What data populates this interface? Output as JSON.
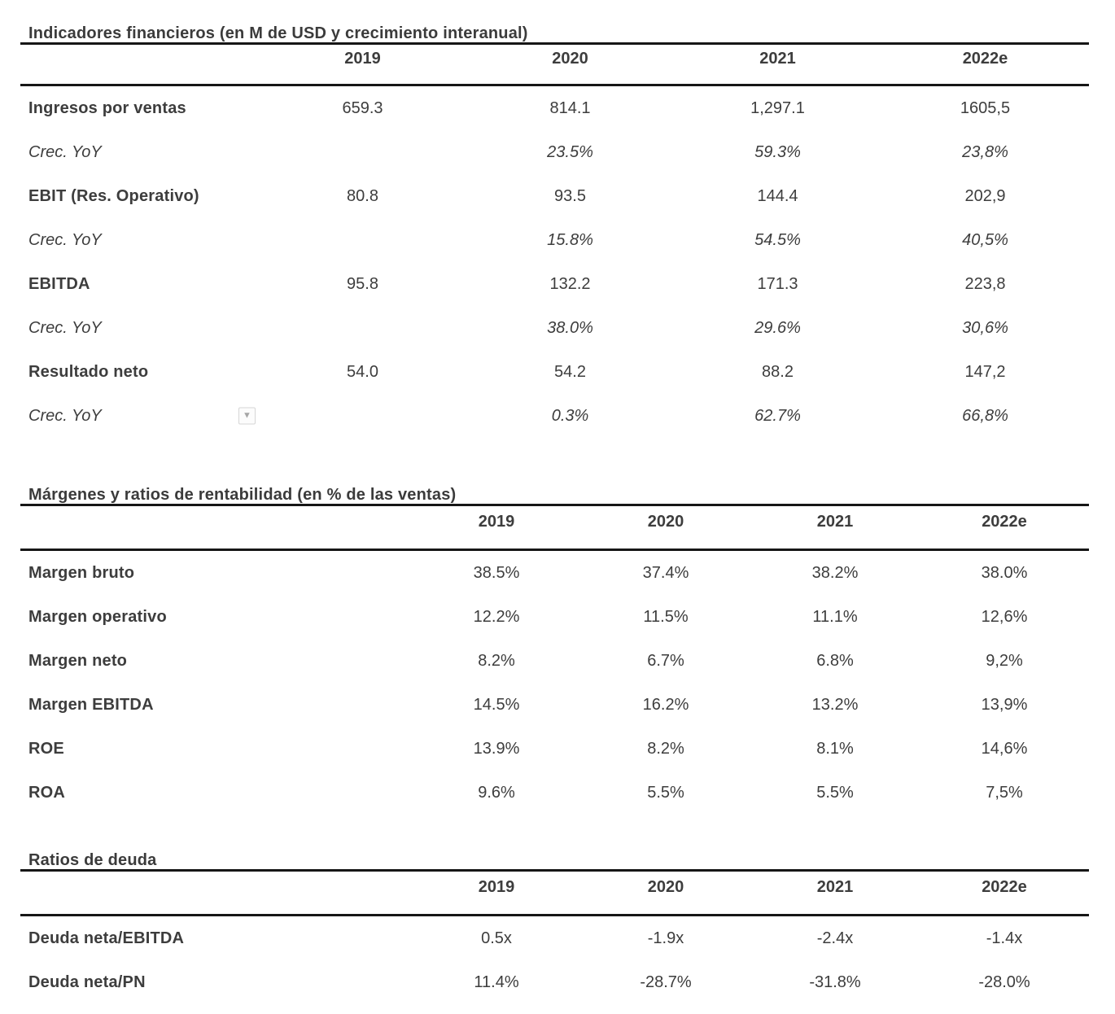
{
  "page": {
    "background_color": "#ffffff",
    "text_color": "#3d3d3d",
    "rule_color": "#161616"
  },
  "icons": {
    "caret_down": "▼"
  },
  "tables": [
    {
      "id": "indicadores",
      "title": "Indicadores financieros (en M de USD y crecimiento interanual)",
      "columns": [
        "2019",
        "2020",
        "2021",
        "2022e"
      ],
      "rows": [
        {
          "label": "Ingresos por ventas",
          "style": "metric",
          "values": [
            "659.3",
            "814.1",
            "1,297.1",
            "1605,5"
          ]
        },
        {
          "label": "Crec. YoY",
          "style": "growth",
          "values": [
            "",
            "23.5%",
            "59.3%",
            "23,8%"
          ]
        },
        {
          "label": "EBIT (Res. Operativo)",
          "style": "metric",
          "values": [
            "80.8",
            "93.5",
            "144.4",
            "202,9"
          ]
        },
        {
          "label": "Crec. YoY",
          "style": "growth",
          "values": [
            "",
            "15.8%",
            "54.5%",
            "40,5%"
          ]
        },
        {
          "label": "EBITDA",
          "style": "metric",
          "values": [
            "95.8",
            "132.2",
            "171.3",
            "223,8"
          ]
        },
        {
          "label": "Crec. YoY",
          "style": "growth",
          "values": [
            "",
            "38.0%",
            "29.6%",
            "30,6%"
          ]
        },
        {
          "label": "Resultado neto",
          "style": "metric",
          "values": [
            "54.0",
            "54.2",
            "88.2",
            "147,2"
          ]
        },
        {
          "label": "Crec. YoY",
          "style": "growth",
          "has_dropdown": true,
          "values": [
            "",
            "0.3%",
            "62.7%",
            "66,8%"
          ]
        }
      ]
    },
    {
      "id": "margenes",
      "title": "Márgenes y ratios de rentabilidad (en % de las ventas)",
      "columns": [
        "2019",
        "2020",
        "2021",
        "2022e"
      ],
      "rows": [
        {
          "label": "Margen bruto",
          "style": "metric",
          "values": [
            "38.5%",
            "37.4%",
            "38.2%",
            "38.0%"
          ]
        },
        {
          "label": "Margen operativo",
          "style": "metric",
          "values": [
            "12.2%",
            "11.5%",
            "11.1%",
            "12,6%"
          ]
        },
        {
          "label": "Margen neto",
          "style": "metric",
          "values": [
            "8.2%",
            "6.7%",
            "6.8%",
            "9,2%"
          ]
        },
        {
          "label": "Margen EBITDA",
          "style": "metric",
          "values": [
            "14.5%",
            "16.2%",
            "13.2%",
            "13,9%"
          ]
        },
        {
          "label": "ROE",
          "style": "metric",
          "values": [
            "13.9%",
            "8.2%",
            "8.1%",
            "14,6%"
          ]
        },
        {
          "label": "ROA",
          "style": "metric",
          "values": [
            "9.6%",
            "5.5%",
            "5.5%",
            "7,5%"
          ]
        }
      ]
    },
    {
      "id": "deuda",
      "title": "Ratios de deuda",
      "columns": [
        "2019",
        "2020",
        "2021",
        "2022e"
      ],
      "rows": [
        {
          "label": "Deuda neta/EBITDA",
          "style": "metric",
          "values": [
            "0.5x",
            "-1.9x",
            "-2.4x",
            "-1.4x"
          ]
        },
        {
          "label": "Deuda neta/PN",
          "style": "metric",
          "values": [
            "11.4%",
            "-28.7%",
            "-31.8%",
            "-28.0%"
          ]
        }
      ]
    }
  ]
}
